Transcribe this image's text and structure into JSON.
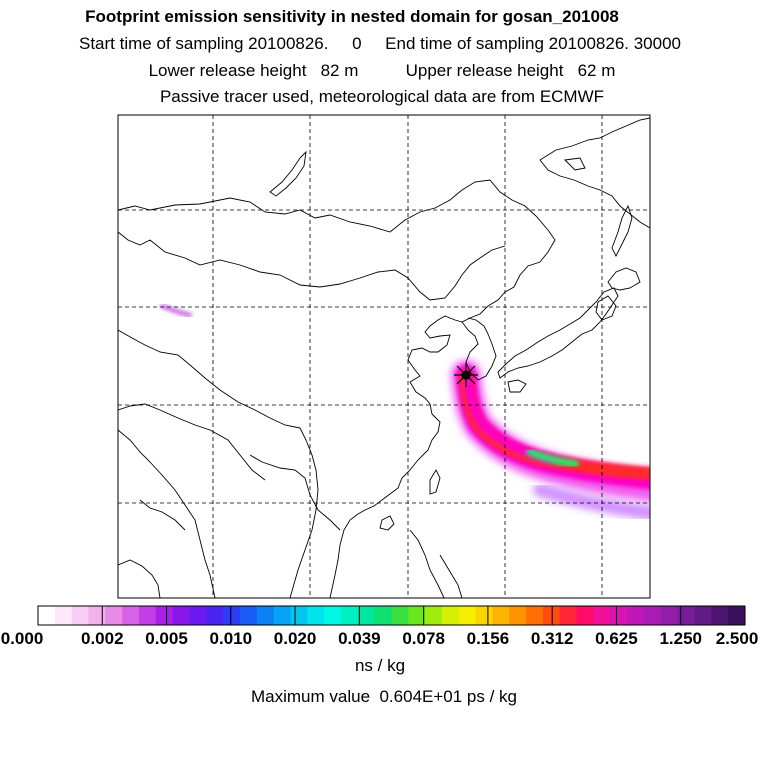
{
  "header": {
    "title": "Footprint emission sensitivity in nested domain for gosan_201008",
    "line1": "Start time of sampling 20100826.     0     End time of sampling 20100826. 30000",
    "line2": "Lower release height   82 m          Upper release height   62 m",
    "line3": "Passive tracer used, meteorological data are from ECMWF"
  },
  "colorbar": {
    "tick_labels": [
      "0.000",
      "0.002",
      "0.005",
      "0.010",
      "0.020",
      "0.039",
      "0.078",
      "0.156",
      "0.312",
      "0.625",
      "1.250",
      "2.500"
    ],
    "colors": [
      "#ffffff",
      "#fde8fb",
      "#f8cdf3",
      "#f2b1ec",
      "#e88ae8",
      "#d863e6",
      "#c23fe6",
      "#a81fe8",
      "#8a17ea",
      "#6a1aee",
      "#4a25f2",
      "#2e3cf5",
      "#1c5cf6",
      "#0d80f6",
      "#05a4f4",
      "#00c6f0",
      "#00e4ec",
      "#00f8e4",
      "#00f0c4",
      "#00e8a0",
      "#10e070",
      "#3ae040",
      "#6ae61c",
      "#a0ec0c",
      "#d4f004",
      "#f6ee00",
      "#fcd400",
      "#feb400",
      "#ff9400",
      "#ff7000",
      "#ff4a10",
      "#ff2638",
      "#ff0c6a",
      "#f0109c",
      "#d814b4",
      "#c018b8",
      "#a81cb4",
      "#901ea8",
      "#781c98",
      "#621a86",
      "#4c1670",
      "#3a105c"
    ],
    "unit": "ns / kg"
  },
  "max_value_text": "Maximum value  0.604E+01 ps / kg",
  "map": {
    "release_marker": "star-icon",
    "plume_colors": [
      "#f060f0",
      "#ff00c8",
      "#ff2b2b",
      "#ff8c00",
      "#ffd000",
      "#a0f000",
      "#2de070",
      "#00c8f0",
      "#d090ff",
      "#c050e0"
    ]
  }
}
